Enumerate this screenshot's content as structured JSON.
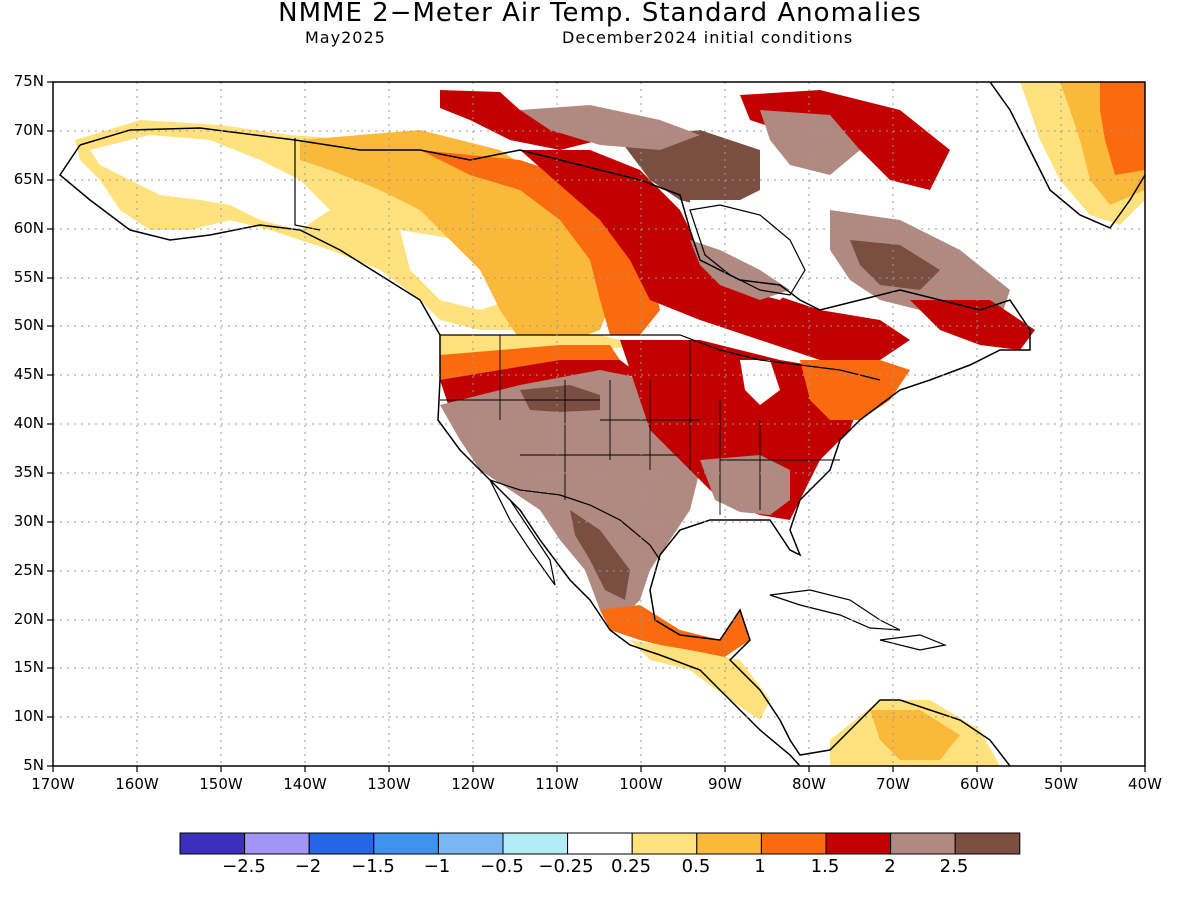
{
  "title": "NMME 2−Meter Air Temp. Standard Anomalies",
  "subtitle_left": "May2025",
  "subtitle_right": "December2024 initial conditions",
  "map": {
    "lon_range": [
      -170,
      -40
    ],
    "lat_range": [
      5,
      75
    ],
    "lat_labels": [
      "75N",
      "70N",
      "65N",
      "60N",
      "55N",
      "50N",
      "45N",
      "40N",
      "35N",
      "30N",
      "25N",
      "20N",
      "15N",
      "10N",
      "5N"
    ],
    "lon_labels": [
      "170W",
      "160W",
      "150W",
      "140W",
      "130W",
      "120W",
      "110W",
      "100W",
      "90W",
      "80W",
      "70W",
      "60W",
      "50W",
      "40W"
    ],
    "gridlines": "dotted"
  },
  "colorbar": {
    "colors": [
      "#3a2fbf",
      "#a394f7",
      "#2466e3",
      "#3f93ef",
      "#79b6f3",
      "#b2ecf6",
      "#ffffff",
      "#ffe27d",
      "#fbb93b",
      "#f96b0e",
      "#c20000",
      "#b08a80",
      "#7b4e42"
    ],
    "labels": [
      "−2.5",
      "−2",
      "−1.5",
      "−1",
      "−0.5",
      "−0.25",
      "0.25",
      "0.5",
      "1",
      "1.5",
      "2",
      "2.5"
    ]
  }
}
